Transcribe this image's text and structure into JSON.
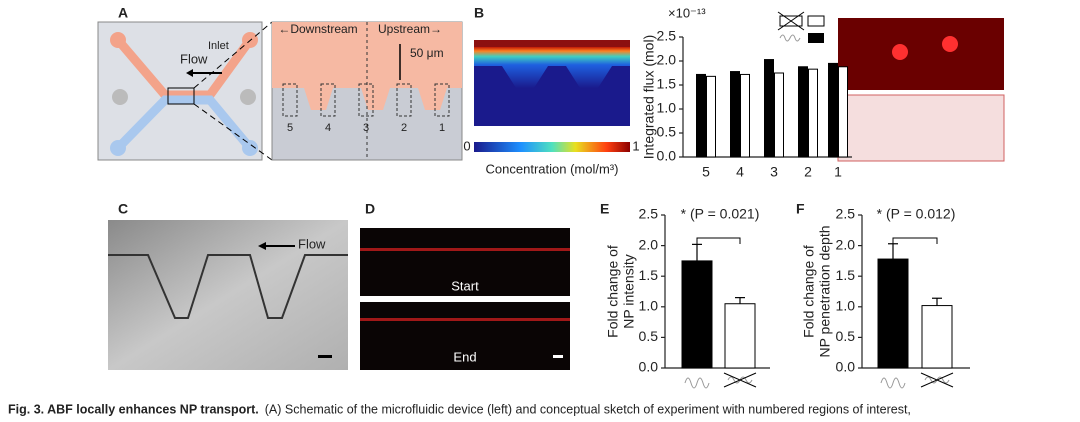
{
  "panels": {
    "A": {
      "label": "A",
      "inlet": "Inlet",
      "flow": "Flow",
      "downstream": "←Downstream",
      "upstream": "Upstream→",
      "scale": "50 μm",
      "regions": [
        "5",
        "4",
        "3",
        "2",
        "1"
      ]
    },
    "B": {
      "label": "B",
      "colorbar_min": "0",
      "colorbar_max": "1",
      "colorbar_label": "Concentration (mol/m³)"
    },
    "C": {
      "label": "C",
      "flow": "Flow"
    },
    "D": {
      "label": "D",
      "start": "Start",
      "end": "End"
    },
    "E": {
      "label": "E"
    },
    "F": {
      "label": "F"
    }
  },
  "caption": {
    "bold": "Fig. 3.  ABF locally enhances NP transport.",
    "text": "(A) Schematic of the microfluidic device (left) and conceptual sketch of experiment with numbered regions of interest,"
  },
  "chart_data": [
    {
      "type": "bar",
      "ylabel": [
        "Integrated flux (mol)"
      ],
      "scale_label": "×10⁻¹³",
      "categories": [
        "5",
        "4",
        "3",
        "2",
        "1"
      ],
      "series": [
        {
          "color": "#000000",
          "values": [
            1.72,
            1.78,
            2.03,
            1.88,
            1.95
          ]
        },
        {
          "color": "#ffffff",
          "values": [
            1.68,
            1.72,
            1.75,
            1.83,
            1.88
          ]
        }
      ],
      "ylim": [
        0,
        2.5
      ],
      "yticks": [
        {
          "value": 0,
          "label": "0.0"
        },
        {
          "value": 0.5,
          "label": "0.5"
        },
        {
          "value": 1,
          "label": "1.0"
        },
        {
          "value": 1.5,
          "label": "1.5"
        },
        {
          "value": 2,
          "label": "2.0"
        },
        {
          "value": 2.5,
          "label": "2.5"
        }
      ]
    },
    {
      "type": "bar",
      "ylabel": [
        "Fold change of",
        "NP intensity"
      ],
      "annotation": "* (P = 0.021)",
      "categories": [
        null,
        null
      ],
      "series": [
        {
          "colors": [
            "#000000",
            "#ffffff"
          ],
          "values": [
            1.75,
            1.05
          ],
          "errors": [
            0.27,
            0.1
          ]
        }
      ],
      "ylim": [
        0,
        2.5
      ],
      "yticks": [
        {
          "value": 0,
          "label": "0.0"
        },
        {
          "value": 0.5,
          "label": "0.5"
        },
        {
          "value": 1,
          "label": "1.0"
        },
        {
          "value": 1.5,
          "label": "1.5"
        },
        {
          "value": 2,
          "label": "2.0"
        },
        {
          "value": 2.5,
          "label": "2.5"
        }
      ]
    },
    {
      "type": "bar",
      "ylabel": [
        "Fold change of",
        "NP penetration depth"
      ],
      "annotation": "* (P = 0.012)",
      "categories": [
        null,
        null
      ],
      "series": [
        {
          "colors": [
            "#000000",
            "#ffffff"
          ],
          "values": [
            1.78,
            1.02
          ],
          "errors": [
            0.25,
            0.12
          ]
        }
      ],
      "ylim": [
        0,
        2.5
      ],
      "yticks": [
        {
          "value": 0,
          "label": "0.0"
        },
        {
          "value": 0.5,
          "label": "0.5"
        },
        {
          "value": 1,
          "label": "1.0"
        },
        {
          "value": 1.5,
          "label": "1.5"
        },
        {
          "value": 2,
          "label": "2.0"
        },
        {
          "value": 2.5,
          "label": "2.5"
        }
      ]
    }
  ]
}
